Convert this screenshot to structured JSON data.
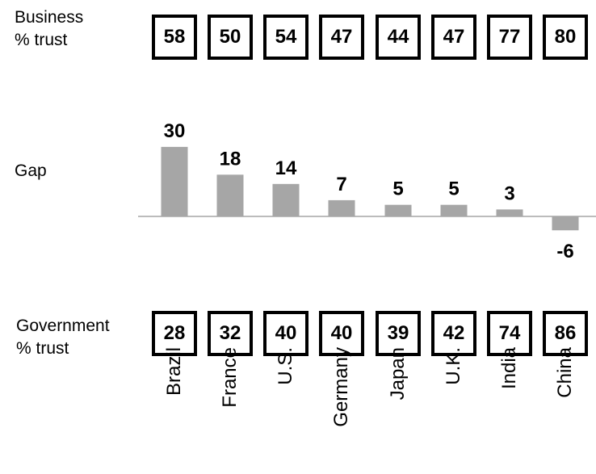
{
  "labels": {
    "business_line1": "Business",
    "business_line2": "% trust",
    "gap": "Gap",
    "government_line1": "Government",
    "government_line2": "% trust"
  },
  "colors": {
    "bar": "#a6a6a6",
    "baseline": "#a6a6a6",
    "box_border": "#000000",
    "text": "#000000"
  },
  "chart_data": {
    "type": "bar",
    "categories": [
      "Brazil",
      "France",
      "U.S.",
      "Germany",
      "Japan",
      "U.K.",
      "India",
      "China"
    ],
    "business_trust": [
      58,
      50,
      54,
      47,
      44,
      47,
      77,
      80
    ],
    "government_trust": [
      28,
      32,
      40,
      40,
      39,
      42,
      74,
      86
    ],
    "series": [
      {
        "values": [
          30,
          18,
          14,
          7,
          5,
          5,
          3,
          -6
        ]
      }
    ],
    "title": "",
    "xlabel": "",
    "ylabel": "Gap",
    "grid": false
  }
}
